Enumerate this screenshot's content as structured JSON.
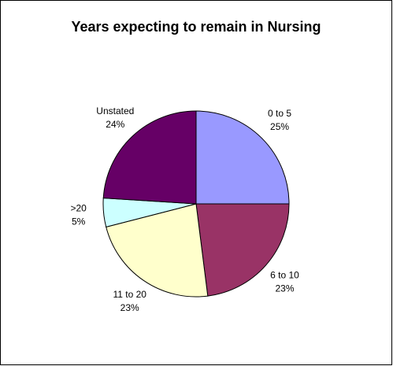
{
  "chart_data": {
    "type": "pie",
    "title": "Years expecting to remain in Nursing",
    "categories": [
      "0 to 5",
      "6 to 10",
      "11 to 20",
      ">20",
      "Unstated"
    ],
    "values": [
      25,
      23,
      23,
      5,
      24
    ],
    "value_labels": [
      "25%",
      "23%",
      "23%",
      "5%",
      "24%"
    ],
    "colors": [
      "#9999ff",
      "#993366",
      "#ffffcc",
      "#ccffff",
      "#660066"
    ]
  }
}
